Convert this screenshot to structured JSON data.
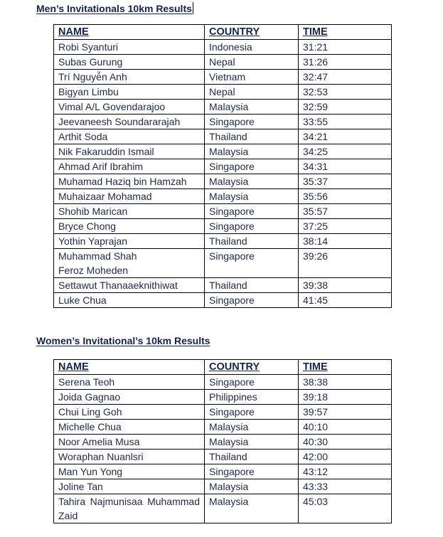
{
  "men": {
    "title": "Men’s Invitationals 10km Results",
    "headers": [
      "NAME",
      "COUNTRY",
      "TIME"
    ],
    "rows": [
      [
        "Robi Syanturi",
        "Indonesia",
        "31:21"
      ],
      [
        "Subas Gurung",
        "Nepal",
        "31:26"
      ],
      [
        "Trí Nguyễn Anh",
        "Vietnam",
        "32:47"
      ],
      [
        "Bigyan Limbu",
        "Nepal",
        "32:53"
      ],
      [
        "Vimal A/L Govendarajoo",
        "Malaysia",
        "32:59"
      ],
      [
        "Jeevaneesh Soundararajah",
        "Singapore",
        "33:55"
      ],
      [
        "Arthit Soda",
        "Thailand",
        "34:21"
      ],
      [
        "Nik Fakaruddin Ismail",
        "Malaysia",
        "34:25"
      ],
      [
        "Ahmad Arif Ibrahim",
        "Singapore",
        "34:31"
      ],
      [
        "Muhamad Haziq bin Hamzah",
        "Malaysia",
        "35:37"
      ],
      [
        "Muhaizaar Mohamad",
        "Malaysia",
        "35:56"
      ],
      [
        "Shohib Marican",
        "Singapore",
        "35:57"
      ],
      [
        "Bryce Chong",
        "Singapore",
        "37:25"
      ],
      [
        "Yothin Yaprajan",
        "Thailand",
        "38:14"
      ],
      [
        "Muhammad Shah Feroz Moheden",
        "Singapore",
        "39:26"
      ],
      [
        "Settawut Thanaaeknithiwat",
        "Thailand",
        "39:38"
      ],
      [
        "Luke Chua",
        "Singapore",
        "41:45"
      ]
    ]
  },
  "women": {
    "title": "Women’s Invitational’s 10km Results",
    "headers": [
      "NAME",
      "COUNTRY",
      "TIME"
    ],
    "rows": [
      [
        "Serena Teoh",
        "Singapore",
        "38:38"
      ],
      [
        "Joida Gagnao",
        "Philippines",
        "39:18"
      ],
      [
        "Chui Ling Goh",
        "Singapore",
        "39:57"
      ],
      [
        "Michelle Chua",
        "Malaysia",
        "40:10"
      ],
      [
        "Noor Amelia Musa",
        "Malaysia",
        "40:30"
      ],
      [
        "Woraphan Nuanlsri",
        " Thailand",
        "42:00"
      ],
      [
        "Man Yun Yong",
        "Singapore",
        "43:12"
      ],
      [
        "Joline Tan",
        "Malaysia",
        "43:33"
      ],
      [
        "Tahira Najmunisaa Muhammad Zaid",
        "Malaysia",
        "45:03"
      ]
    ]
  }
}
